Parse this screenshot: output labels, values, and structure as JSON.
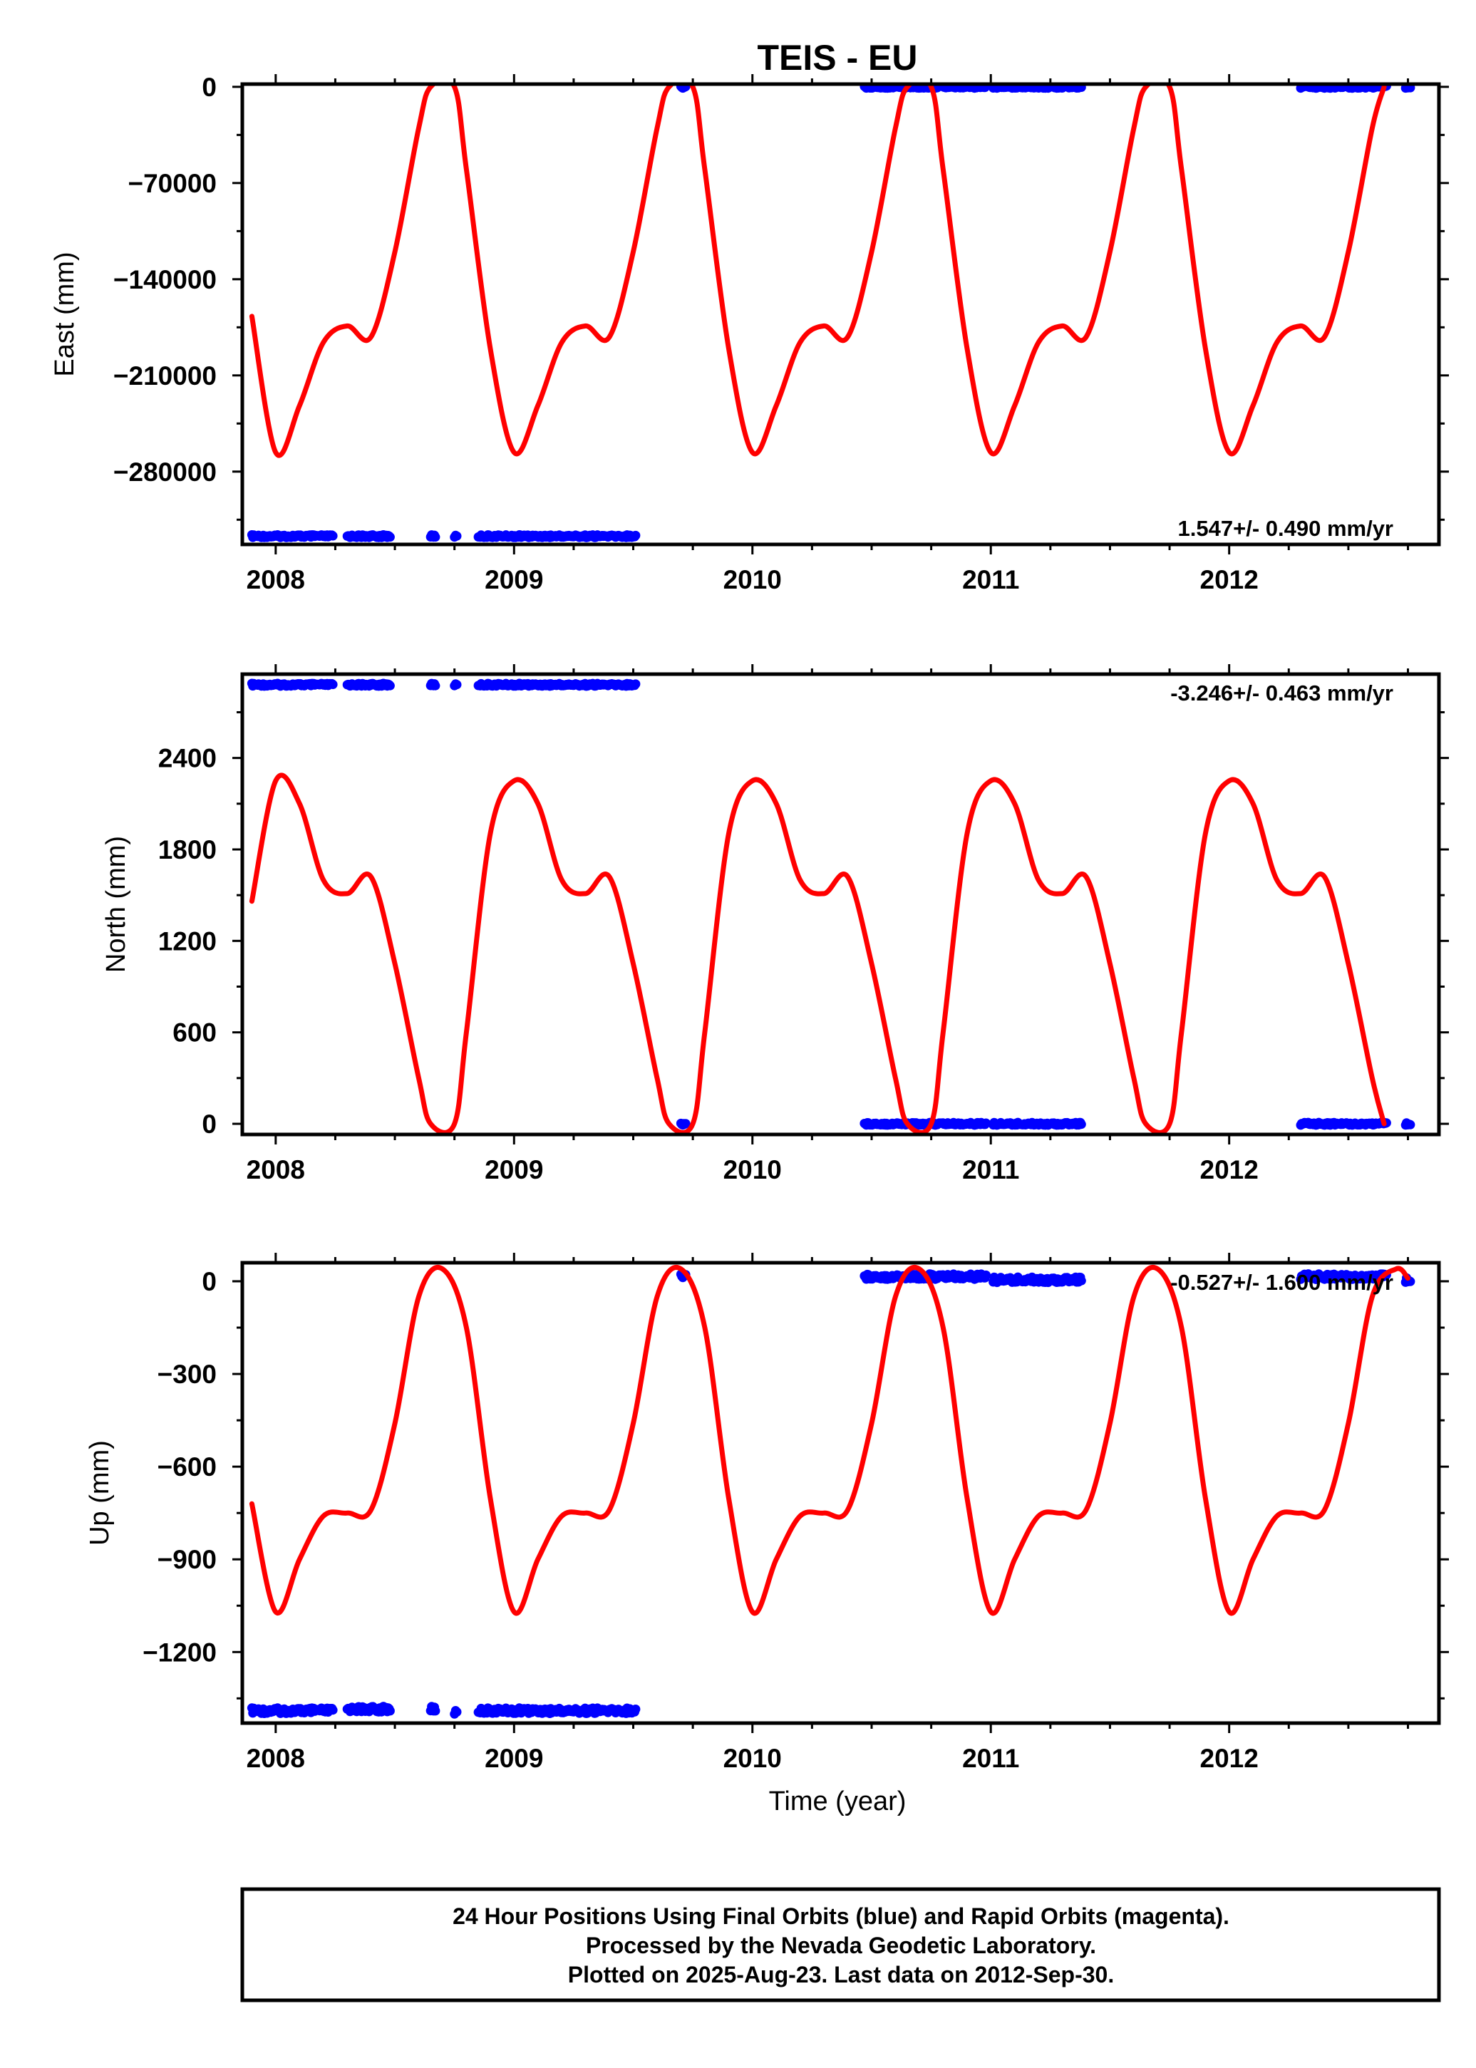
{
  "title": "TEIS - EU",
  "xlabel": "Time (year)",
  "colors": {
    "observations": "#0000ff",
    "model": "#ff0000"
  },
  "footer": {
    "line1": "24 Hour Positions Using Final Orbits (blue) and Rapid Orbits (magenta).",
    "line2": "Processed by the Nevada Geodetic Laboratory.",
    "line3": "Plotted on 2025-Aug-23. Last data on 2012-Sep-30."
  },
  "chart_data": [
    {
      "type": "scatter",
      "panel": "east",
      "ylabel": "East (mm)",
      "rate_label": "1.547+/- 0.490 mm/yr",
      "xlim": [
        2007.86,
        2012.88
      ],
      "ylim": [
        -333000,
        2000
      ],
      "x_ticks": [
        2008,
        2009,
        2010,
        2011,
        2012
      ],
      "y_ticks": [
        0,
        -70000,
        -140000,
        -210000,
        -280000
      ],
      "y_tick_labels": [
        "0",
        "−70000",
        "−140000",
        "−210000",
        "−280000"
      ],
      "series": [
        {
          "kind": "observations",
          "color": "#0000ff",
          "segments": [
            {
              "x": [
                2007.9,
                2008.24
              ],
              "y": -327000
            },
            {
              "x": [
                2008.3,
                2008.48
              ],
              "y": -327000
            },
            {
              "x": [
                2008.65,
                2008.67
              ],
              "y": -327000
            },
            {
              "x": [
                2008.75,
                2008.76
              ],
              "y": -327000
            },
            {
              "x": [
                2008.85,
                2009.51
              ],
              "y": -327000
            },
            {
              "x": [
                2009.7,
                2009.72
              ],
              "y": 0
            },
            {
              "x": [
                2010.47,
                2010.98
              ],
              "y": 0
            },
            {
              "x": [
                2011.01,
                2011.38
              ],
              "y": 0
            },
            {
              "x": [
                2012.3,
                2012.66
              ],
              "y": 0
            },
            {
              "x": [
                2012.74,
                2012.76
              ],
              "y": 0
            }
          ]
        },
        {
          "kind": "model",
          "color": "#ff0000",
          "x": [
            2007.9,
            2008.0,
            2008.1,
            2008.2,
            2008.3,
            2008.4,
            2008.5,
            2008.6,
            2008.65,
            2008.75,
            2008.8,
            2008.9,
            2009.0,
            2009.1,
            2009.2,
            2009.3,
            2009.4,
            2009.5,
            2009.6,
            2009.65,
            2009.75,
            2009.8,
            2009.9,
            2010.0,
            2010.1,
            2010.2,
            2010.3,
            2010.4,
            2010.5,
            2010.6,
            2010.65,
            2010.75,
            2010.8,
            2010.9,
            2011.0,
            2011.1,
            2011.2,
            2011.3,
            2011.4,
            2011.5,
            2011.6,
            2011.65,
            2011.75,
            2011.8,
            2011.9,
            2012.0,
            2012.1,
            2012.2,
            2012.3,
            2012.4,
            2012.5,
            2012.6,
            2012.65
          ],
          "y": [
            -167000,
            -266000,
            -232000,
            -186000,
            -174000,
            -182000,
            -120000,
            -30000,
            0,
            0,
            -60000,
            -190000,
            -266000,
            -232000,
            -186000,
            -174000,
            -182000,
            -120000,
            -30000,
            0,
            0,
            -60000,
            -190000,
            -266000,
            -232000,
            -186000,
            -174000,
            -182000,
            -120000,
            -30000,
            0,
            0,
            -60000,
            -190000,
            -266000,
            -232000,
            -186000,
            -174000,
            -182000,
            -120000,
            -30000,
            0,
            0,
            -60000,
            -190000,
            -266000,
            -232000,
            -186000,
            -174000,
            -182000,
            -120000,
            -30000,
            0
          ]
        }
      ]
    },
    {
      "type": "scatter",
      "panel": "north",
      "ylabel": "North (mm)",
      "rate_label": "-3.246+/- 0.463 mm/yr",
      "xlim": [
        2007.86,
        2012.88
      ],
      "ylim": [
        -70,
        2950
      ],
      "x_ticks": [
        2008,
        2009,
        2010,
        2011,
        2012
      ],
      "y_ticks": [
        0,
        600,
        1200,
        1800,
        2400
      ],
      "y_tick_labels": [
        "0",
        "600",
        "1200",
        "1800",
        "2400"
      ],
      "series": [
        {
          "kind": "observations",
          "color": "#0000ff",
          "segments": [
            {
              "x": [
                2007.9,
                2008.24
              ],
              "y": 2880
            },
            {
              "x": [
                2008.3,
                2008.48
              ],
              "y": 2880
            },
            {
              "x": [
                2008.65,
                2008.67
              ],
              "y": 2880
            },
            {
              "x": [
                2008.75,
                2008.76
              ],
              "y": 2880
            },
            {
              "x": [
                2008.85,
                2009.51
              ],
              "y": 2880
            },
            {
              "x": [
                2009.7,
                2009.72
              ],
              "y": 0
            },
            {
              "x": [
                2010.47,
                2010.98
              ],
              "y": 0
            },
            {
              "x": [
                2011.01,
                2011.38
              ],
              "y": 0
            },
            {
              "x": [
                2012.3,
                2012.66
              ],
              "y": 0
            },
            {
              "x": [
                2012.74,
                2012.76
              ],
              "y": 0
            }
          ]
        },
        {
          "kind": "model",
          "color": "#ff0000",
          "x": [
            2007.9,
            2008.0,
            2008.1,
            2008.2,
            2008.3,
            2008.4,
            2008.5,
            2008.6,
            2008.65,
            2008.75,
            2008.8,
            2008.9,
            2009.0,
            2009.1,
            2009.2,
            2009.3,
            2009.4,
            2009.5,
            2009.6,
            2009.65,
            2009.75,
            2009.8,
            2009.9,
            2010.0,
            2010.1,
            2010.2,
            2010.3,
            2010.4,
            2010.5,
            2010.6,
            2010.65,
            2010.75,
            2010.8,
            2010.9,
            2011.0,
            2011.1,
            2011.2,
            2011.3,
            2011.4,
            2011.5,
            2011.6,
            2011.65,
            2011.75,
            2011.8,
            2011.9,
            2012.0,
            2012.1,
            2012.2,
            2012.3,
            2012.4,
            2012.5,
            2012.6,
            2012.65
          ],
          "y": [
            1460,
            2250,
            2100,
            1600,
            1510,
            1620,
            1050,
            300,
            0,
            0,
            600,
            1900,
            2250,
            2100,
            1600,
            1510,
            1620,
            1050,
            300,
            0,
            0,
            600,
            1900,
            2250,
            2100,
            1600,
            1510,
            1620,
            1050,
            300,
            0,
            0,
            600,
            1900,
            2250,
            2100,
            1600,
            1510,
            1620,
            1050,
            300,
            0,
            0,
            600,
            1900,
            2250,
            2100,
            1600,
            1510,
            1620,
            1050,
            300,
            0
          ]
        }
      ]
    },
    {
      "type": "scatter",
      "panel": "up",
      "ylabel": "Up (mm)",
      "rate_label": "-0.527+/- 1.600 mm/yr",
      "xlim": [
        2007.86,
        2012.88
      ],
      "ylim": [
        -1430,
        60
      ],
      "x_ticks": [
        2008,
        2009,
        2010,
        2011,
        2012
      ],
      "y_ticks": [
        0,
        -300,
        -600,
        -900,
        -1200
      ],
      "y_tick_labels": [
        "0",
        "−300",
        "−600",
        "−900",
        "−1200"
      ],
      "series": [
        {
          "kind": "observations",
          "color": "#0000ff",
          "segments": [
            {
              "x": [
                2007.9,
                2008.24
              ],
              "y": -1390
            },
            {
              "x": [
                2008.3,
                2008.48
              ],
              "y": -1385
            },
            {
              "x": [
                2008.65,
                2008.67
              ],
              "y": -1385
            },
            {
              "x": [
                2008.75,
                2008.76
              ],
              "y": -1395
            },
            {
              "x": [
                2008.85,
                2009.51
              ],
              "y": -1390
            },
            {
              "x": [
                2009.7,
                2009.72
              ],
              "y": 20
            },
            {
              "x": [
                2010.47,
                2010.98
              ],
              "y": 15
            },
            {
              "x": [
                2011.01,
                2011.38
              ],
              "y": 5
            },
            {
              "x": [
                2012.3,
                2012.66
              ],
              "y": 15
            },
            {
              "x": [
                2012.74,
                2012.76
              ],
              "y": 5
            }
          ]
        },
        {
          "kind": "model",
          "color": "#ff0000",
          "x": [
            2007.9,
            2008.0,
            2008.1,
            2008.2,
            2008.3,
            2008.4,
            2008.5,
            2008.6,
            2008.7,
            2008.8,
            2008.9,
            2009.0,
            2009.1,
            2009.2,
            2009.3,
            2009.4,
            2009.5,
            2009.6,
            2009.7,
            2009.8,
            2009.9,
            2010.0,
            2010.1,
            2010.2,
            2010.3,
            2010.4,
            2010.5,
            2010.6,
            2010.7,
            2010.8,
            2010.9,
            2011.0,
            2011.1,
            2011.2,
            2011.3,
            2011.4,
            2011.5,
            2011.6,
            2011.7,
            2011.8,
            2011.9,
            2012.0,
            2012.1,
            2012.2,
            2012.3,
            2012.4,
            2012.5,
            2012.6,
            2012.7,
            2012.75
          ],
          "y": [
            -720,
            -1070,
            -900,
            -760,
            -750,
            -740,
            -460,
            -50,
            40,
            -150,
            -700,
            -1070,
            -900,
            -760,
            -750,
            -740,
            -460,
            -50,
            40,
            -150,
            -700,
            -1070,
            -900,
            -760,
            -750,
            -740,
            -460,
            -50,
            40,
            -150,
            -700,
            -1070,
            -900,
            -760,
            -750,
            -740,
            -460,
            -50,
            40,
            -150,
            -700,
            -1070,
            -900,
            -760,
            -750,
            -740,
            -460,
            -50,
            40,
            10
          ]
        }
      ]
    }
  ]
}
